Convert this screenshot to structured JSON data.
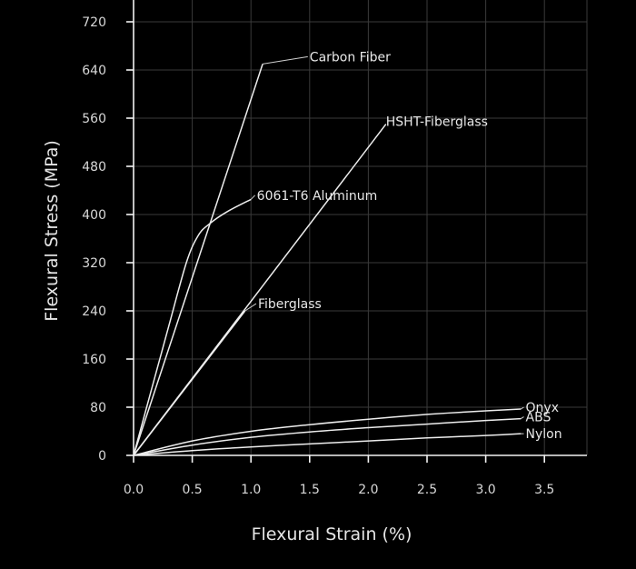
{
  "chart_data": {
    "type": "line",
    "xlabel": "Flexural Strain (%)",
    "ylabel": "Flexural Stress (MPa)",
    "xlim": [
      0,
      3.8
    ],
    "ylim": [
      0,
      720
    ],
    "x_ticks": [
      0.0,
      0.5,
      1.0,
      1.5,
      2.0,
      2.5,
      3.0,
      3.5
    ],
    "x_tick_labels": [
      "0.0",
      "0.5",
      "1.0",
      "1.5",
      "2.0",
      "2.5",
      "3.0",
      "3.5"
    ],
    "y_ticks": [
      0,
      80,
      160,
      240,
      320,
      400,
      480,
      560,
      640,
      720
    ],
    "y_tick_labels": [
      "0",
      "80",
      "160",
      "240",
      "320",
      "400",
      "480",
      "560",
      "640",
      "720"
    ],
    "grid": true,
    "legend": "none",
    "series": [
      {
        "name": "Carbon Fiber",
        "x": [
          0,
          1.1
        ],
        "y": [
          0,
          650
        ]
      },
      {
        "name": "HSHT-Fiberglass",
        "x": [
          0,
          2.15
        ],
        "y": [
          0,
          550
        ]
      },
      {
        "name": "6061-T6 Aluminum",
        "x": [
          0,
          0.3,
          0.45,
          0.55,
          0.65,
          0.8,
          1.0
        ],
        "y": [
          0,
          215,
          320,
          365,
          385,
          405,
          425
        ]
      },
      {
        "name": "Fiberglass",
        "x": [
          0,
          0.95
        ],
        "y": [
          0,
          240
        ]
      },
      {
        "name": "Onyx",
        "x": [
          0,
          0.5,
          1.0,
          1.5,
          2.0,
          2.5,
          3.0,
          3.3
        ],
        "y": [
          0,
          24,
          40,
          51,
          60,
          68,
          74,
          77
        ]
      },
      {
        "name": "ABS",
        "x": [
          0,
          0.5,
          1.0,
          1.5,
          2.0,
          2.5,
          3.0,
          3.3
        ],
        "y": [
          0,
          17,
          30,
          39,
          46,
          52,
          58,
          61
        ]
      },
      {
        "name": "Nylon",
        "x": [
          0,
          0.5,
          1.0,
          1.5,
          2.0,
          2.5,
          3.0,
          3.3
        ],
        "y": [
          0,
          8,
          14,
          19,
          24,
          29,
          33,
          36
        ]
      }
    ],
    "labels": [
      {
        "series": "Carbon Fiber",
        "text": "Carbon Fiber",
        "x": 1.5,
        "y": 662,
        "anchor_x": 1.1,
        "anchor_y": 650
      },
      {
        "series": "HSHT-Fiberglass",
        "text": "HSHT-Fiberglass",
        "x": 2.15,
        "y": 555,
        "anchor_x": 2.15,
        "anchor_y": 550
      },
      {
        "series": "6061-T6 Aluminum",
        "text": "6061-T6 Aluminum",
        "x": 1.05,
        "y": 432,
        "anchor_x": 1.0,
        "anchor_y": 425
      },
      {
        "series": "Fiberglass",
        "text": "Fiberglass",
        "x": 1.06,
        "y": 252,
        "anchor_x": 0.95,
        "anchor_y": 240
      },
      {
        "series": "Onyx",
        "text": "Onyx",
        "x": 3.34,
        "y": 80,
        "anchor_x": 3.3,
        "anchor_y": 77
      },
      {
        "series": "ABS",
        "text": "ABS",
        "x": 3.34,
        "y": 64,
        "anchor_x": 3.3,
        "anchor_y": 61
      },
      {
        "series": "Nylon",
        "text": "Nylon",
        "x": 3.34,
        "y": 36,
        "anchor_x": 3.3,
        "anchor_y": 36
      }
    ]
  }
}
